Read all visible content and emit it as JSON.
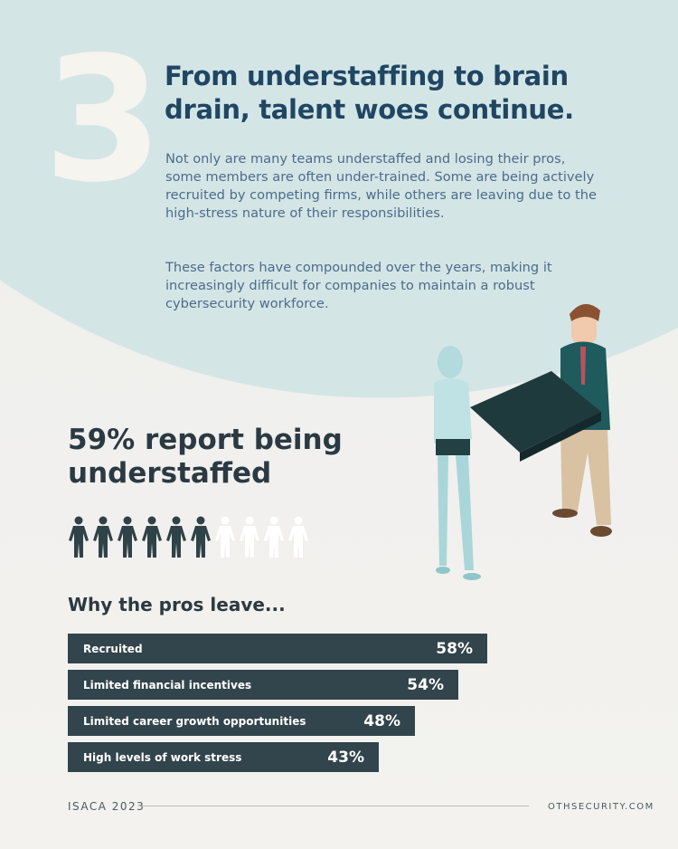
{
  "section_number": "3",
  "headline": "From understaffing to brain drain, talent woes continue.",
  "paragraphs": [
    "Not only are many teams understaffed and losing their pros, some members are often under-trained. Some are being actively recruited by competing firms, while others are leaving due to the high-stress nature of their responsibilities.",
    "These factors have compounded over the years, making it increasingly difficult for companies to maintain a robust cybersecurity workforce."
  ],
  "stat": {
    "text": "59% report being understaffed",
    "people_total": 10,
    "people_filled": 6,
    "filled_color": "#2f4248",
    "empty_color": "#ffffff"
  },
  "chart_data": {
    "type": "bar",
    "orientation": "horizontal",
    "title": "Why the pros leave...",
    "categories": [
      "Recruited",
      "Limited financial incentives",
      "Limited career growth opportunities",
      "High levels of work stress"
    ],
    "values": [
      58,
      54,
      48,
      43
    ],
    "value_labels": [
      "58%",
      "54%",
      "48%",
      "43%"
    ],
    "bar_color": "#32444c"
  },
  "footer": {
    "source": "ISACA 2023",
    "site": "OTHSECURITY.COM"
  },
  "colors": {
    "background_circle": "#d4e5e6",
    "headline": "#1f4663",
    "body_text": "#4d6b8a"
  }
}
